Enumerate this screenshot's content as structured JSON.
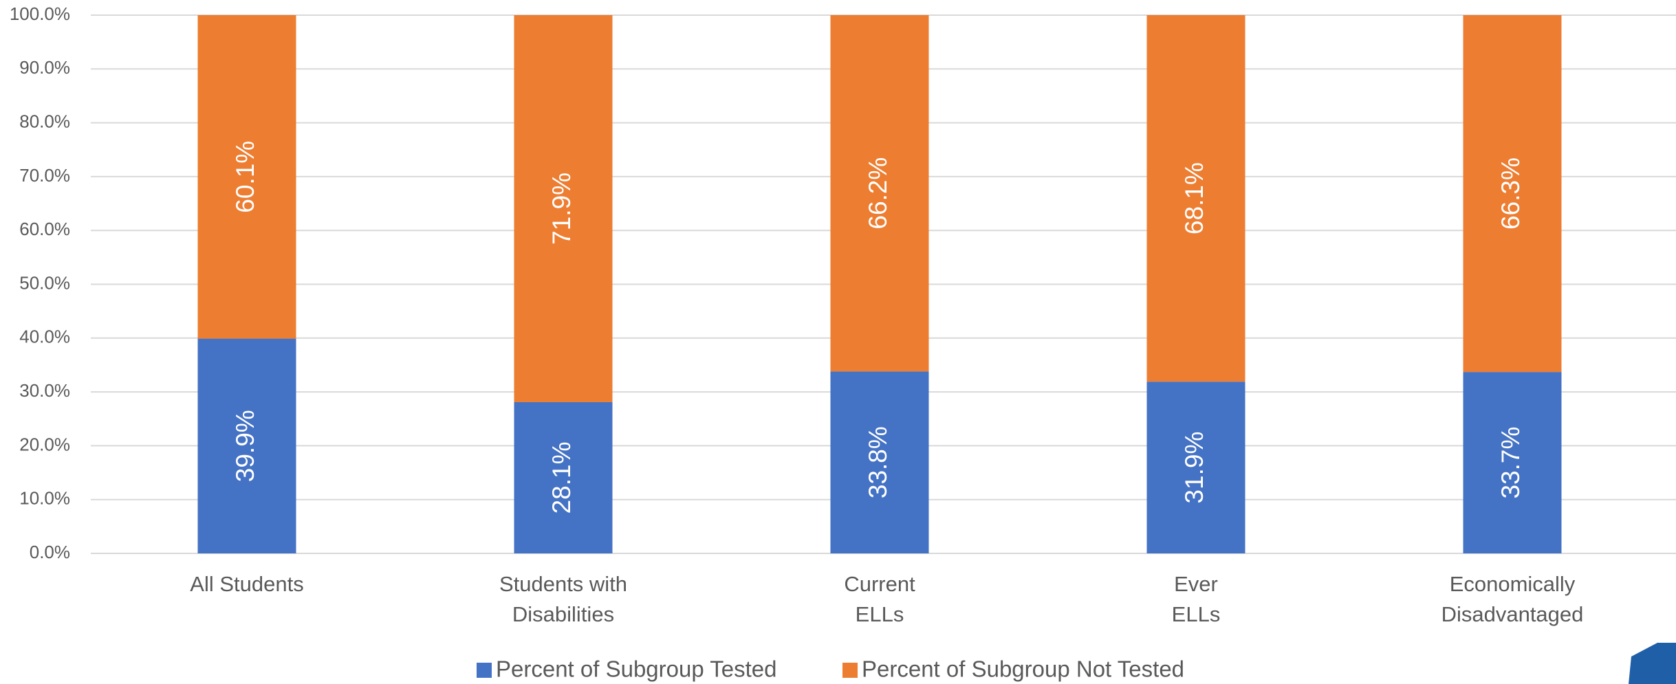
{
  "chart_data": {
    "type": "stacked_bar",
    "categories": [
      [
        "All Students"
      ],
      [
        "Students with",
        "Disabilities"
      ],
      [
        "Current",
        "ELLs"
      ],
      [
        "Ever",
        "ELLs"
      ],
      [
        "Economically",
        "Disadvantaged"
      ]
    ],
    "series": [
      {
        "name": "Percent of Subgroup Tested",
        "color": "#4472c4",
        "values": [
          39.9,
          28.1,
          33.8,
          31.9,
          33.7
        ],
        "value_labels": [
          "39.9%",
          "28.1%",
          "33.8%",
          "31.9%",
          "33.7%"
        ]
      },
      {
        "name": "Percent of Subgroup Not Tested",
        "color": "#ed7d31",
        "values": [
          60.1,
          71.9,
          66.2,
          68.1,
          66.3
        ],
        "value_labels": [
          "60.1%",
          "71.9%",
          "66.2%",
          "68.1%",
          "66.3%"
        ]
      }
    ],
    "ylim": [
      0,
      100
    ],
    "yticks": [
      {
        "value": 0,
        "label": "0.0%"
      },
      {
        "value": 10,
        "label": "10.0%"
      },
      {
        "value": 20,
        "label": "20.0%"
      },
      {
        "value": 30,
        "label": "30.0%"
      },
      {
        "value": 40,
        "label": "40.0%"
      },
      {
        "value": 50,
        "label": "50.0%"
      },
      {
        "value": 60,
        "label": "60.0%"
      },
      {
        "value": 70,
        "label": "70.0%"
      },
      {
        "value": 80,
        "label": "80.0%"
      },
      {
        "value": 90,
        "label": "90.0%"
      },
      {
        "value": 100,
        "label": "100.0%"
      }
    ],
    "grid": true,
    "legend": "bottom"
  }
}
